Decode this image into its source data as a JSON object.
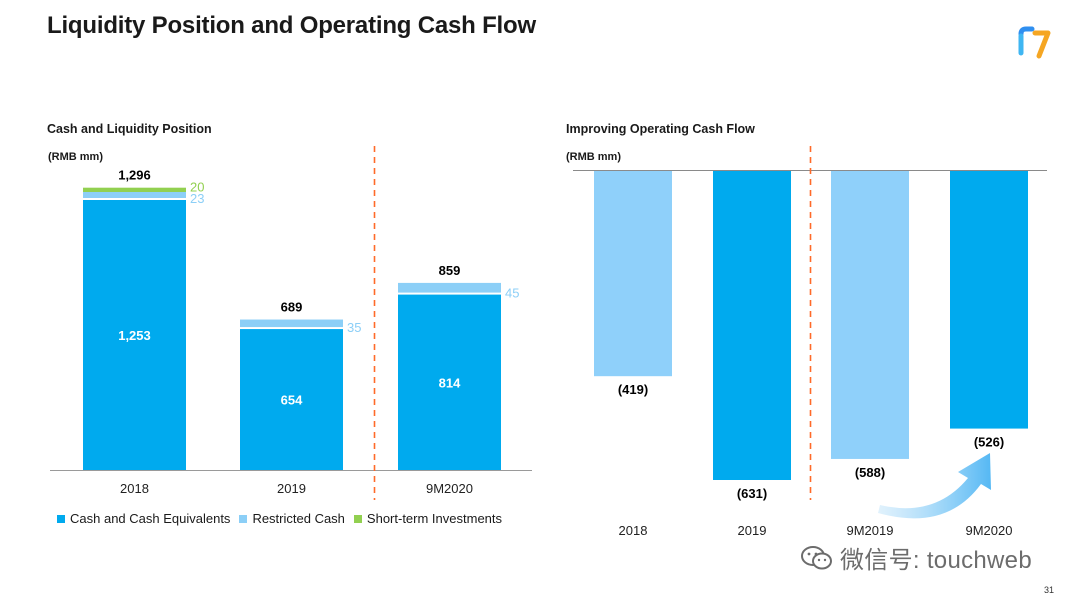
{
  "page": {
    "title": "Liquidity Position and Operating Cash Flow",
    "page_number": "31"
  },
  "colors": {
    "cash": "#00aaee",
    "restricted": "#8ccff7",
    "short_term": "#92d050",
    "ocf_light": "#8fd0fa",
    "ocf_dark": "#00aaee",
    "divider": "#ff6a29"
  },
  "watermark": {
    "text": "微信号: touchweb"
  },
  "chart_data": [
    {
      "type": "bar",
      "stacked": true,
      "title": "Cash and Liquidity Position",
      "unit_label": "(RMB mm)",
      "categories": [
        "2018",
        "2019",
        "9M2020"
      ],
      "series": [
        {
          "name": "Cash and Cash Equivalents",
          "values": [
            1253,
            654,
            814
          ],
          "labels": [
            "1,253",
            "654",
            "814"
          ]
        },
        {
          "name": "Restricted Cash",
          "values": [
            23,
            35,
            45
          ],
          "labels": [
            "23",
            "35",
            "45"
          ]
        },
        {
          "name": "Short-term Investments",
          "values": [
            20,
            0,
            0
          ],
          "labels": [
            "20",
            "",
            ""
          ]
        }
      ],
      "totals": [
        1296,
        689,
        859
      ],
      "total_labels": [
        "1,296",
        "689",
        "859"
      ],
      "legend": [
        "Cash and Cash Equivalents",
        "Restricted Cash",
        "Short-term Investments"
      ],
      "legend_position": "bottom"
    },
    {
      "type": "bar",
      "title": "Improving Operating Cash Flow",
      "unit_label": "(RMB mm)",
      "categories": [
        "2018",
        "2019",
        "9M2019",
        "9M2020"
      ],
      "values": [
        -419,
        -631,
        -588,
        -526
      ],
      "value_labels": [
        "(419)",
        "(631)",
        "(588)",
        "(526)"
      ],
      "shades": [
        "light",
        "dark",
        "light",
        "dark"
      ]
    }
  ]
}
